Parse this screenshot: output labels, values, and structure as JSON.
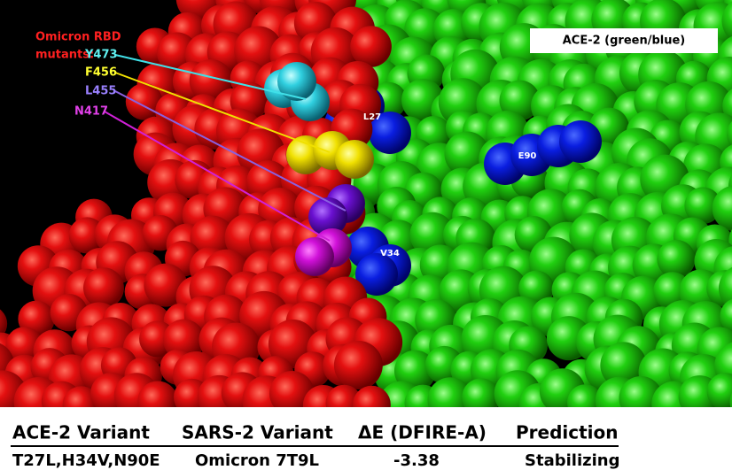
{
  "image": {
    "ace2_label": "ACE-2 (green/blue)",
    "mutants_title": [
      "Omicron RBD",
      "mutants:"
    ],
    "mutants": [
      "Y473",
      "F456",
      "L455",
      "N417"
    ],
    "residues": [
      "L27",
      "E90",
      "V34"
    ]
  },
  "table": {
    "headers": [
      "ACE-2 Variant",
      "SARS-2 Variant",
      "ΔE (DFIRE-A)",
      "Prediction"
    ],
    "rows": [
      [
        "T27L,H34V,N90E",
        "Omicron 7T9L",
        -3.38,
        "Stabilizing"
      ]
    ]
  }
}
